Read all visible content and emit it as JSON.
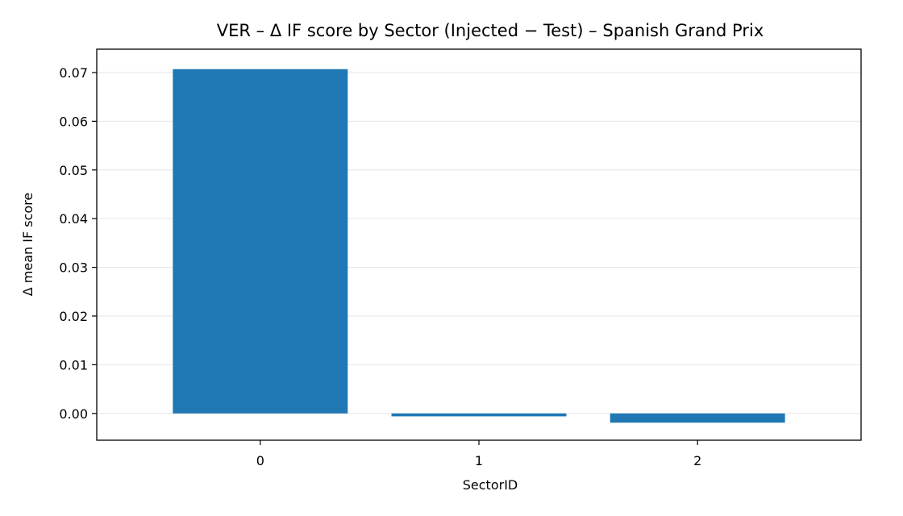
{
  "chart_data": {
    "type": "bar",
    "title": "VER – Δ IF score by Sector (Injected − Test) – Spanish Grand Prix",
    "xlabel": "SectorID",
    "ylabel": "Δ mean IF score",
    "categories": [
      "0",
      "1",
      "2"
    ],
    "values": [
      0.0707,
      -0.0006,
      -0.0019
    ],
    "ylim": [
      -0.0055,
      0.0748
    ],
    "yticks": [
      0.0,
      0.01,
      0.02,
      0.03,
      0.04,
      0.05,
      0.06,
      0.07
    ],
    "ytick_labels": [
      "0.00",
      "0.01",
      "0.02",
      "0.03",
      "0.04",
      "0.05",
      "0.06",
      "0.07"
    ],
    "bar_color": "#1f77b4",
    "grid": "y-major",
    "grid_color": "#e6e6e6"
  }
}
